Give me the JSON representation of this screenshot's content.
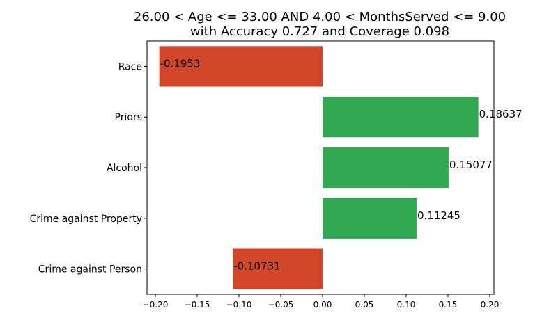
{
  "chart_data": {
    "type": "bar",
    "orientation": "horizontal",
    "title_lines": [
      "26.00 < Age <= 33.00 AND 4.00 < MonthsServed <= 9.00",
      "with Accuracy 0.727 and Coverage 0.098"
    ],
    "categories": [
      "Race",
      "Priors",
      "Alcohol",
      "Crime against Property",
      "Crime against Person"
    ],
    "values": [
      -0.1953,
      0.18637,
      0.15077,
      0.11245,
      -0.10731
    ],
    "value_labels": [
      "-0.1953",
      "0.18637",
      "0.15077",
      "0.11245",
      "-0.10731"
    ],
    "xlim": [
      -0.21,
      0.205
    ],
    "xticks": [
      -0.2,
      -0.15,
      -0.1,
      -0.05,
      0.0,
      0.05,
      0.1,
      0.15,
      0.2
    ],
    "xtick_labels": [
      "−0.20",
      "−0.15",
      "−0.10",
      "−0.05",
      "0.00",
      "0.05",
      "0.10",
      "0.15",
      "0.20"
    ],
    "colors": {
      "positive": "#33a853",
      "negative": "#d14628"
    },
    "grid": false,
    "legend": "none"
  }
}
